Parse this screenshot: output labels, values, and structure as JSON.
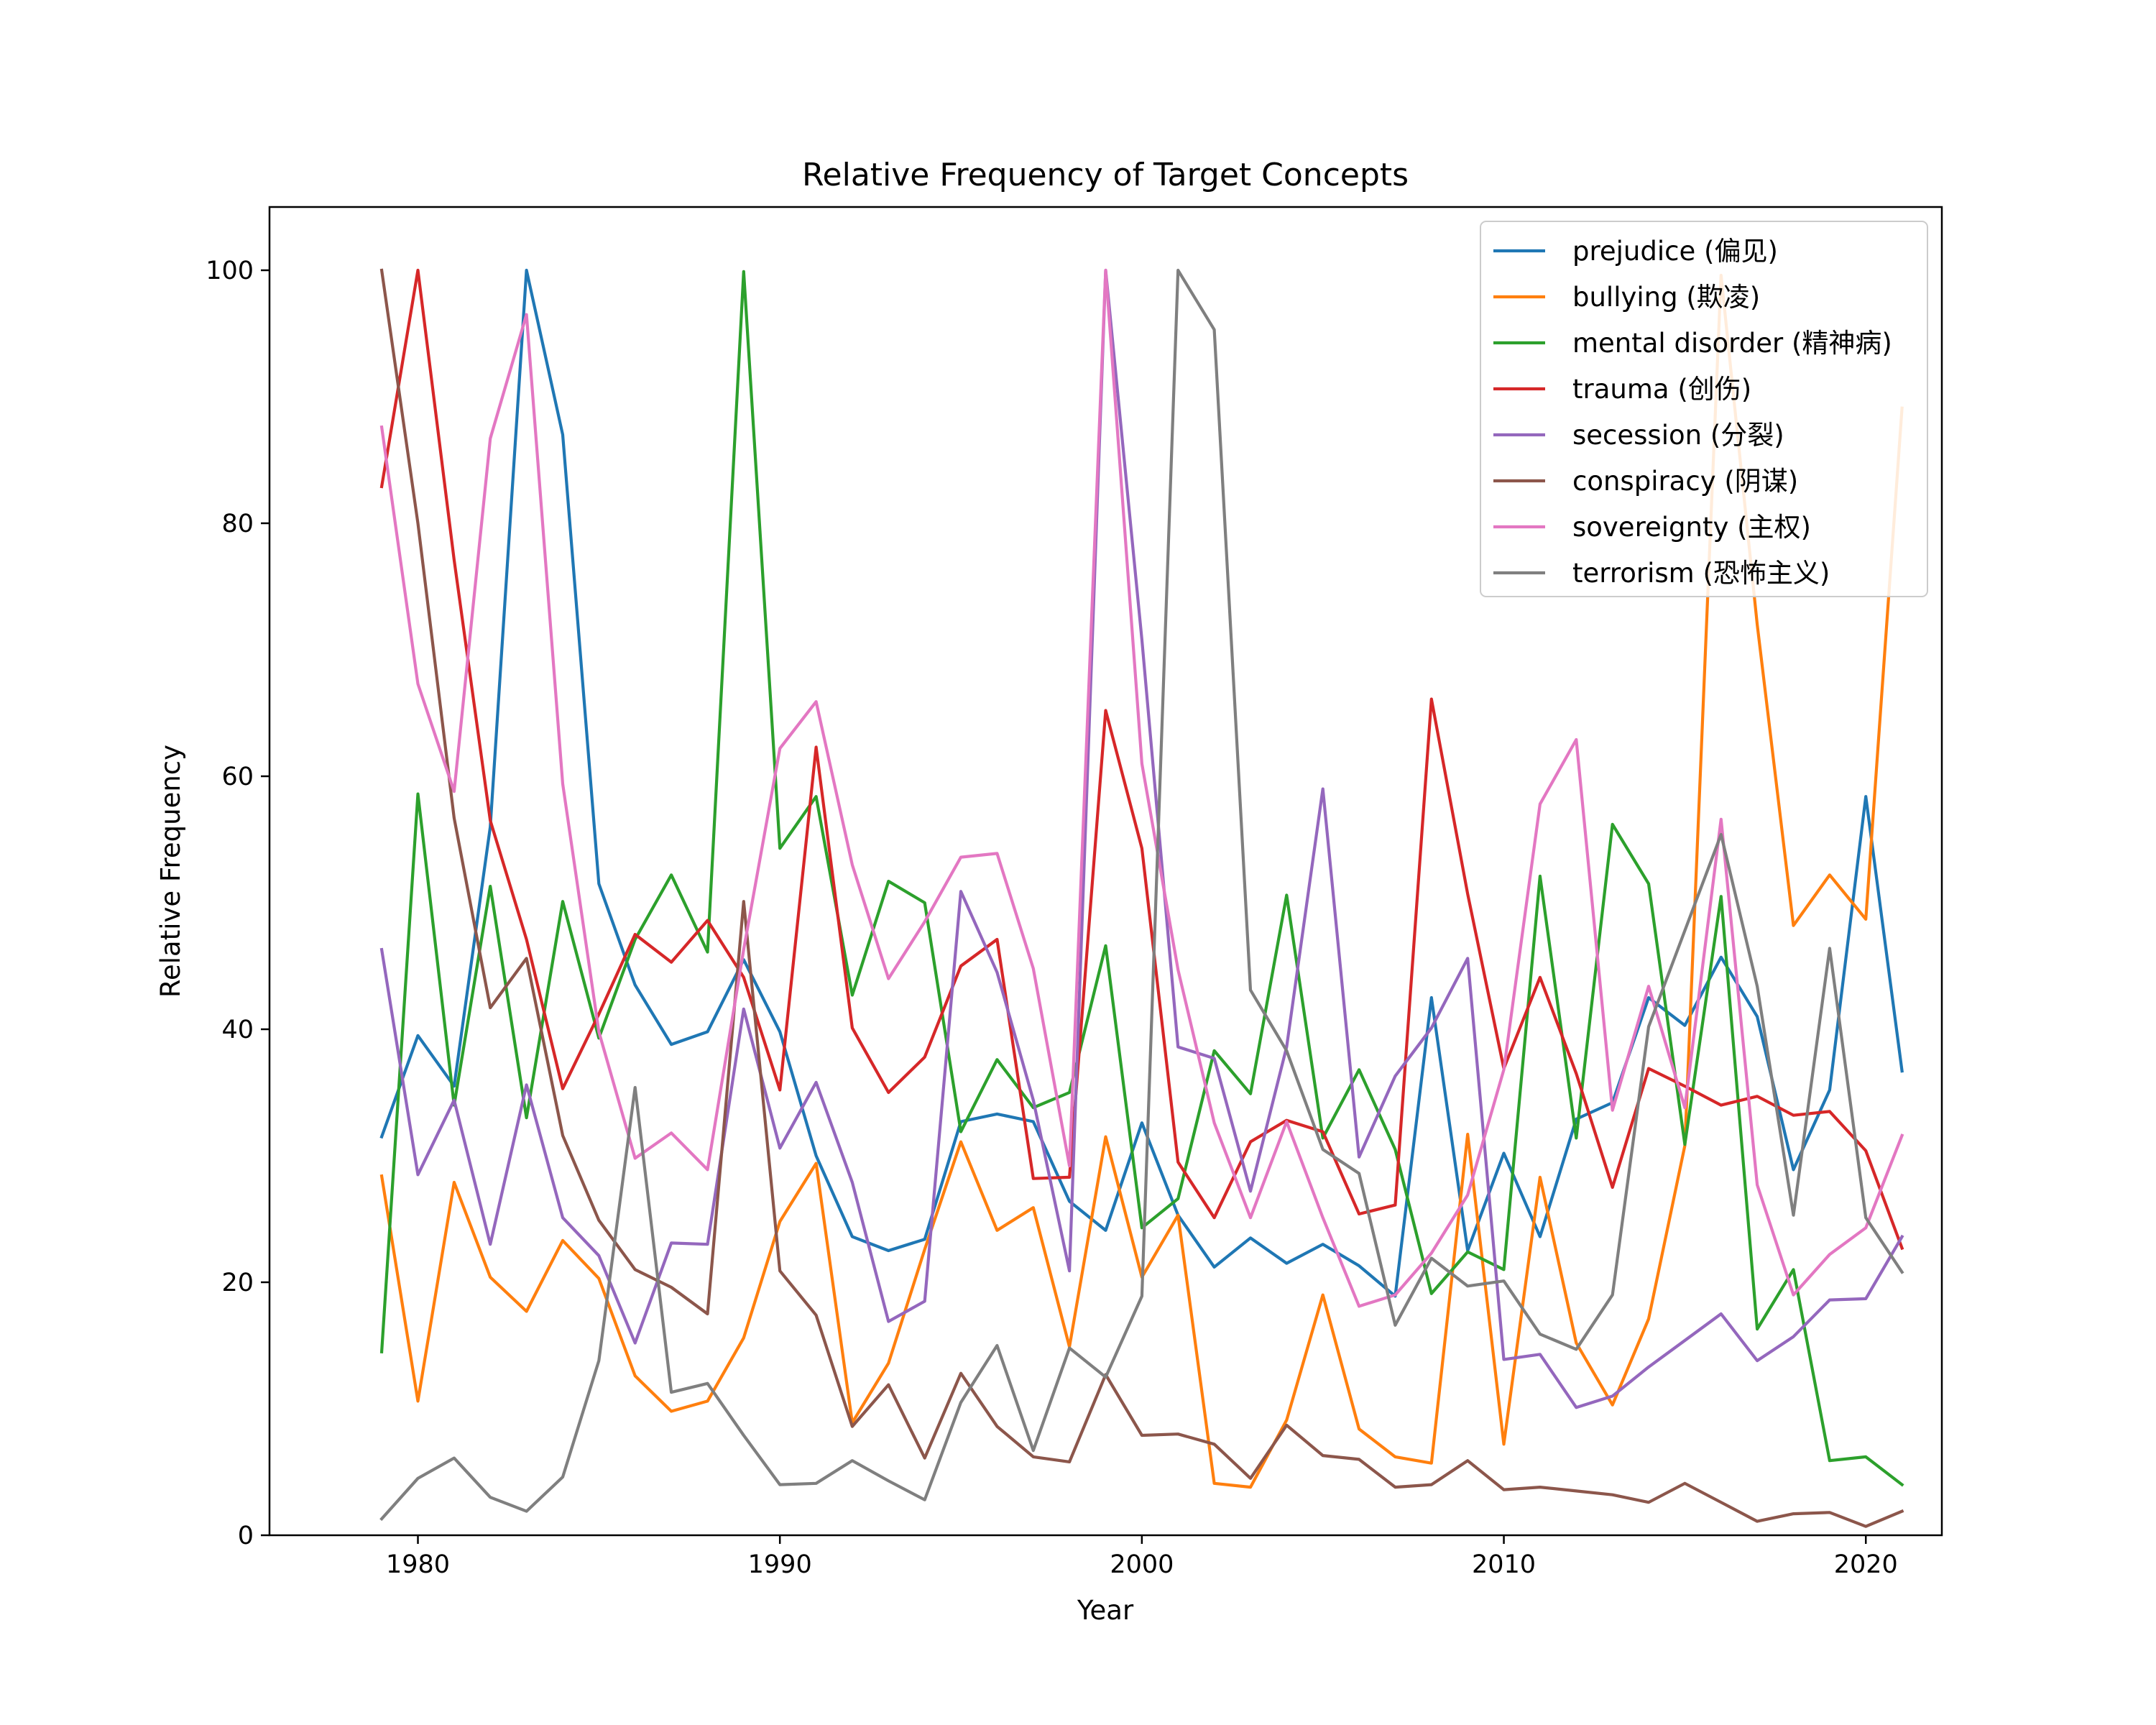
{
  "chart_data": {
    "type": "line",
    "title": "Relative Frequency of Target Concepts",
    "xlabel": "Year",
    "ylabel": "Relative Frequency",
    "xlim": [
      1975.9,
      2022.1
    ],
    "ylim": [
      0,
      105
    ],
    "xticks": [
      1980,
      1990,
      2000,
      2010,
      2020
    ],
    "yticks": [
      0,
      20,
      40,
      60,
      80,
      100
    ],
    "grid": false,
    "legend_position": "top-right",
    "x": [
      1979,
      1980,
      1981,
      1982,
      1983,
      1984,
      1985,
      1986,
      1987,
      1988,
      1989,
      1990,
      1991,
      1992,
      1993,
      1994,
      1995,
      1996,
      1997,
      1998,
      1999,
      2000,
      2001,
      2002,
      2003,
      2004,
      2005,
      2006,
      2007,
      2008,
      2009,
      2010,
      2011,
      2012,
      2013,
      2014,
      2015,
      2016,
      2017,
      2018,
      2019,
      2020,
      2021
    ],
    "series": [
      {
        "name": "prejudice (偏见)",
        "color": "#1f77b4",
        "values": [
          31.5,
          39.5,
          35.5,
          56,
          100,
          87,
          51.5,
          43.5,
          38.8,
          39.8,
          45.5,
          39.8,
          30,
          23.6,
          22.5,
          23.4,
          32.7,
          33.3,
          32.7,
          26.4,
          24.1,
          32.6,
          25.3,
          21.2,
          23.5,
          21.5,
          23,
          21.3,
          18.9,
          42.5,
          22.5,
          30.2,
          23.6,
          32.9,
          34.2,
          42.5,
          40.3,
          45.7,
          41,
          28.9,
          35.2,
          58.4,
          36.7
        ]
      },
      {
        "name": "bullying (欺凌)",
        "color": "#ff7f0e",
        "values": [
          28.4,
          10.6,
          27.9,
          20.4,
          17.7,
          23.3,
          20.3,
          12.6,
          9.8,
          10.6,
          15.6,
          24.8,
          29.4,
          8.9,
          13.6,
          22.6,
          31.1,
          24.1,
          25.9,
          14.9,
          31.5,
          20.4,
          25.3,
          4.1,
          3.8,
          9.1,
          19,
          8.4,
          6.2,
          5.7,
          31.7,
          7.2,
          28.3,
          15.2,
          10.3,
          17.1,
          30.8,
          99.6,
          72,
          48.2,
          52.2,
          48.7,
          89.1
        ]
      },
      {
        "name": "mental disorder (精神病)",
        "color": "#2ca02c",
        "values": [
          14.5,
          58.6,
          34,
          51.3,
          33,
          50.1,
          39.3,
          47.1,
          52.2,
          46.1,
          99.9,
          54.3,
          58.4,
          42.7,
          51.7,
          50,
          31.9,
          37.6,
          33.8,
          35,
          46.6,
          24.3,
          26.6,
          38.3,
          34.9,
          50.6,
          31.4,
          36.8,
          30.5,
          19.1,
          22.4,
          21,
          52.1,
          31.4,
          56.2,
          51.5,
          30.9,
          50.5,
          16.3,
          21,
          5.9,
          6.2,
          4
        ]
      },
      {
        "name": "trauma (创伤)",
        "color": "#d62728",
        "values": [
          82.9,
          100,
          77.1,
          56.5,
          47.1,
          35.3,
          41.2,
          47.5,
          45.3,
          48.6,
          44.1,
          35.2,
          62.3,
          40.1,
          35,
          37.8,
          45,
          47.1,
          28.2,
          28.3,
          65.2,
          54.3,
          29.5,
          25.1,
          31.1,
          32.8,
          31.9,
          25.4,
          26.1,
          66.1,
          50.7,
          36.9,
          44.1,
          36.5,
          27.5,
          36.9,
          35.5,
          34,
          34.7,
          33.2,
          33.5,
          30.4,
          22.7
        ]
      },
      {
        "name": "secession (分裂)",
        "color": "#9467bd",
        "values": [
          46.3,
          28.5,
          34.4,
          23,
          35.6,
          25.1,
          22.1,
          15.2,
          23.1,
          23,
          41.6,
          30.6,
          35.8,
          27.9,
          16.9,
          18.5,
          50.9,
          44.5,
          34.4,
          20.9,
          100,
          70.8,
          38.6,
          37.7,
          27.2,
          38.6,
          59,
          29.9,
          36.3,
          40.1,
          45.6,
          13.9,
          14.3,
          10.1,
          11,
          13.3,
          15.4,
          17.5,
          13.8,
          15.7,
          18.6,
          18.7,
          23.6
        ]
      },
      {
        "name": "conspiracy (阴谋)",
        "color": "#8c564b",
        "values": [
          100,
          80,
          56.7,
          41.7,
          45.6,
          31.6,
          24.9,
          21,
          19.6,
          17.5,
          50.1,
          20.9,
          17.4,
          8.6,
          11.9,
          6.1,
          12.8,
          8.6,
          6.2,
          5.8,
          12.7,
          7.9,
          8,
          7.2,
          4.5,
          8.7,
          6.3,
          6,
          3.8,
          4,
          5.9,
          3.6,
          3.8,
          3.5,
          3.2,
          2.6,
          4.1,
          2.6,
          1.1,
          1.7,
          1.8,
          0.7,
          1.9
        ]
      },
      {
        "name": "sovereignty (主权)",
        "color": "#e377c2",
        "values": [
          87.6,
          67.3,
          58.8,
          86.7,
          96.5,
          59.4,
          39.8,
          29.8,
          31.8,
          28.9,
          46.3,
          62.2,
          65.9,
          53,
          44,
          48.5,
          53.6,
          53.9,
          44.8,
          29.2,
          100,
          61,
          44.7,
          32.6,
          25.1,
          32.7,
          25.1,
          18.1,
          19,
          22.3,
          26.9,
          36.8,
          57.8,
          62.9,
          33.6,
          43.4,
          33.8,
          56.6,
          27.7,
          19,
          22.2,
          24.3,
          31.6
        ]
      },
      {
        "name": "terrorism (恐怖主义)",
        "color": "#7f7f7f",
        "values": [
          1.3,
          4.5,
          6.1,
          3,
          1.9,
          4.6,
          13.8,
          35.4,
          11.3,
          12,
          7.9,
          4,
          4.1,
          5.9,
          4.3,
          2.8,
          10.5,
          15,
          6.7,
          14.8,
          12.5,
          18.9,
          100,
          95.3,
          43.1,
          38.3,
          30.5,
          28.6,
          16.6,
          21.9,
          19.7,
          20.1,
          15.9,
          14.7,
          19,
          40.2,
          47.8,
          55.4,
          43.4,
          25.3,
          46.4,
          25.1,
          20.8
        ]
      }
    ]
  }
}
